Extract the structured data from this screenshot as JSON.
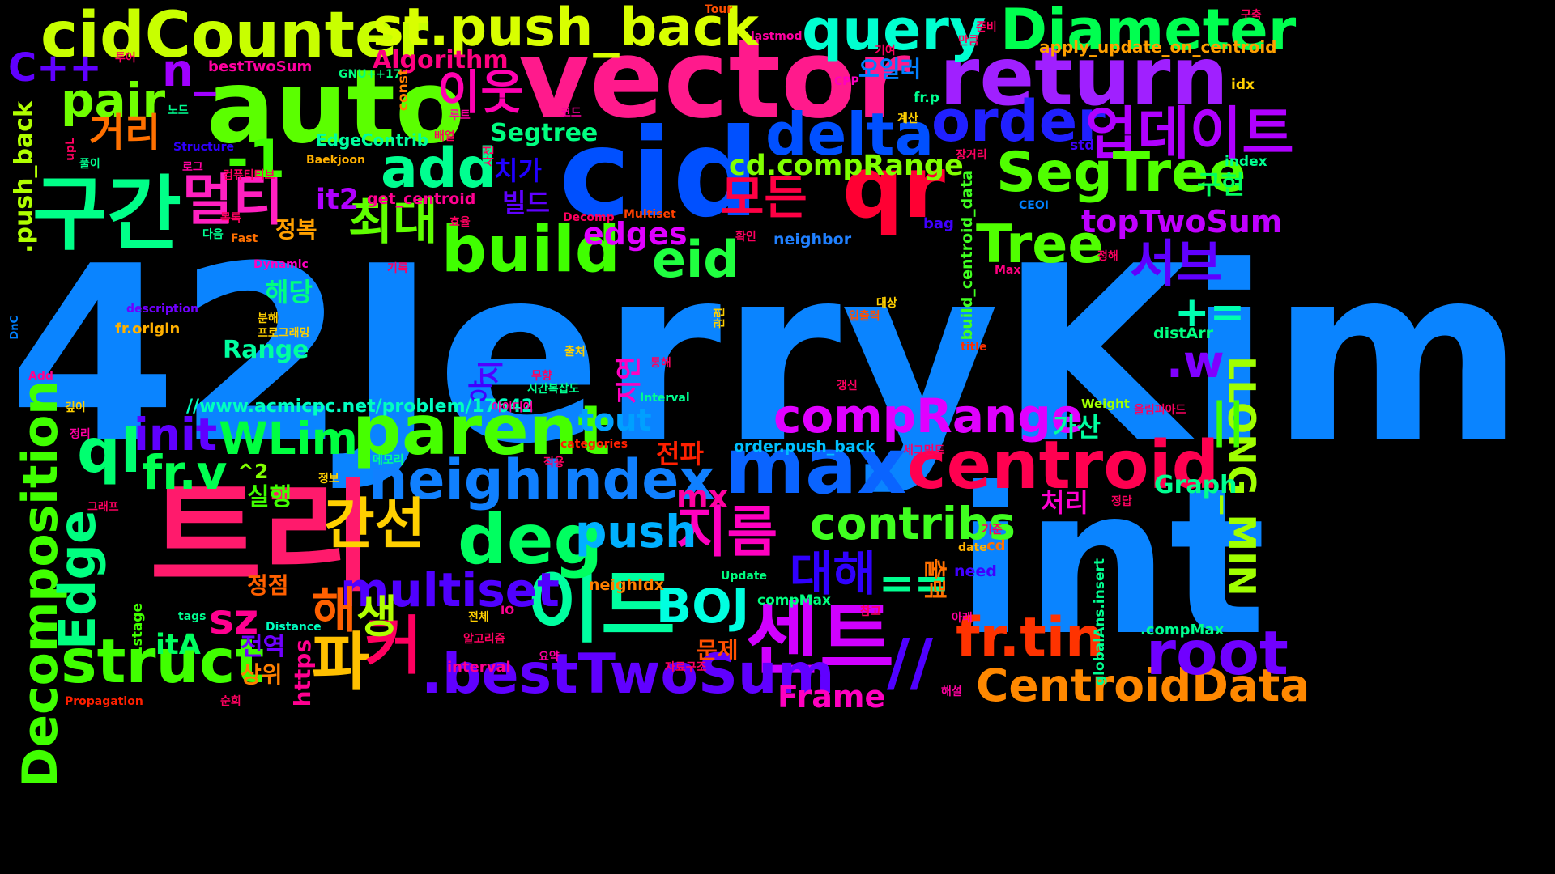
{
  "cloud": {
    "words": [
      {
        "text": "42JerryKim",
        "color": "#0a84ff"
      },
      {
        "text": "int",
        "color": "#0a84ff"
      },
      {
        "text": "vector",
        "color": "#ff1a8c"
      },
      {
        "text": "cid",
        "color": "#0050ff"
      },
      {
        "text": "auto",
        "color": "#5bff00"
      },
      {
        "text": "트리",
        "color": "#ff1a6c"
      },
      {
        "text": "cidCounter",
        "color": "#c8ff00"
      },
      {
        "text": "return",
        "color": "#a020ff"
      },
      {
        "text": "qr",
        "color": "#ff0033"
      },
      {
        "text": "max",
        "color": "#0a64ff"
      },
      {
        "text": "parent",
        "color": "#46ff00"
      },
      {
        "text": "centroid",
        "color": "#ff0050"
      },
      {
        "text": "구간",
        "color": "#00ff88"
      },
      {
        "text": "이드",
        "color": "#00ffa0"
      },
      {
        "text": "센트",
        "color": "#d000ff"
      },
      {
        "text": "query",
        "color": "#00ffd0"
      },
      {
        "text": "Diameter",
        "color": "#00ff50"
      },
      {
        "text": "st.push_back",
        "color": "#d8ff00"
      },
      {
        "text": "order",
        "color": "#2020ff"
      },
      {
        "text": "delta",
        "color": "#0050ff"
      },
      {
        "text": "업데이트",
        "color": "#b000ff"
      },
      {
        "text": "SegTree",
        "color": "#50ff00"
      },
      {
        "text": "compRange",
        "color": "#e000ff"
      },
      {
        "text": "neighIndex",
        "color": "#1080ff"
      },
      {
        "text": "build",
        "color": "#40ff00"
      },
      {
        "text": "deg",
        "color": "#00ff60"
      },
      {
        "text": "struct",
        "color": "#40ff00"
      },
      {
        "text": ".bestTwoSum",
        "color": "#6000ff"
      },
      {
        "text": "CentroidData",
        "color": "#ff8800"
      },
      {
        "text": "root",
        "color": "#7000ff"
      },
      {
        "text": "fr.tin",
        "color": "#ff3300"
      },
      {
        "text": "Tree",
        "color": "#50ff00"
      },
      {
        "text": "멀티",
        "color": "#ff20c0"
      },
      {
        "text": "모든",
        "color": "#ff0044"
      },
      {
        "text": "최대",
        "color": "#60ff00"
      },
      {
        "text": "add",
        "color": "#00ff90"
      },
      {
        "text": "eid",
        "color": "#20ff40"
      },
      {
        "text": "ql",
        "color": "#00ff70"
      },
      {
        "text": "fr.v",
        "color": "#00ff50"
      },
      {
        "text": "init",
        "color": "#6000ff"
      },
      {
        "text": "WLim",
        "color": "#00ff40"
      },
      {
        "text": "지름",
        "color": "#ff00c0"
      },
      {
        "text": "간선",
        "color": "#ffd000"
      },
      {
        "text": "push",
        "color": "#00b0ff"
      },
      {
        "text": "multiset",
        "color": "#5000ff"
      },
      {
        "text": "BOJ",
        "color": "#00ffe0"
      },
      {
        "text": "contribs",
        "color": "#40ff20"
      },
      {
        "text": "대해",
        "color": "#3000ff"
      },
      {
        "text": "파",
        "color": "#ffc000"
      },
      {
        "text": "해",
        "color": "#ff6000"
      },
      {
        "text": "커",
        "color": "#ff0060"
      },
      {
        "text": "생",
        "color": "#b0ff00"
      },
      {
        "text": "Decomposition",
        "color": "#40ff00"
      },
      {
        "text": "Edge",
        "color": "#00ff80"
      },
      {
        "text": "pair",
        "color": "#70ff00"
      },
      {
        "text": "거리",
        "color": "#ff7000"
      },
      {
        "text": "n_",
        "color": "#a000ff"
      },
      {
        "text": "-1",
        "color": "#40ff00"
      },
      {
        "text": "C++",
        "color": "#6000ff"
      },
      {
        "text": "이웃",
        "color": "#ff00b0"
      },
      {
        "text": "서브",
        "color": "#6000ff"
      },
      {
        "text": "+=",
        "color": "#00ffb0"
      },
      {
        "text": ".w",
        "color": "#8000ff"
      },
      {
        "text": "LLONG_MIN",
        "color": "#a0ff00"
      },
      {
        "text": "||",
        "color": "#40ff00"
      },
      {
        "text": "==",
        "color": "#00ff90"
      },
      {
        "text": "//",
        "color": "#5000ff"
      },
      {
        "text": "sz",
        "color": "#ff0090"
      },
      {
        "text": "topTwoSum",
        "color": "#c000ff"
      },
      {
        "text": "edges",
        "color": "#e000ff"
      },
      {
        "text": "cd.compRange",
        "color": "#80ff00"
      },
      {
        "text": "it2",
        "color": "#b000ff"
      },
      {
        "text": "tout",
        "color": "#00a0ff"
      },
      {
        "text": "mx",
        "color": "#ff00a0"
      },
      {
        "text": "Frame",
        "color": "#ff00c0"
      },
      {
        "text": "Range",
        "color": "#00ffa0"
      },
      {
        "text": "Algorithm",
        "color": "#ff0080"
      },
      {
        "text": "Segtree",
        "color": "#00ff80"
      },
      {
        "text": "itA",
        "color": "#00ff60"
      },
      {
        "text": "Graph",
        "color": "#00ff90"
      },
      {
        "text": "가산",
        "color": "#00ffa0"
      },
      {
        "text": "구현",
        "color": "#00ff60"
      },
      {
        "text": "처리",
        "color": "#ff00d0"
      },
      {
        "text": "전파",
        "color": "#ff2000"
      },
      {
        "text": "치가",
        "color": "#2000ff"
      },
      {
        "text": "빌드",
        "color": "#6000ff"
      },
      {
        "text": "해당",
        "color": "#00ff80"
      },
      {
        "text": "정복",
        "color": "#ffa000"
      },
      {
        "text": "실행",
        "color": "#40ff00"
      },
      {
        "text": "정점",
        "color": "#ff6000"
      },
      {
        "text": "전역",
        "color": "#7000ff"
      },
      {
        "text": "상위",
        "color": "#ff8000"
      },
      {
        "text": "문제",
        "color": "#ff5000"
      },
      {
        "text": "출력",
        "color": "#ff7000"
      },
      {
        "text": "지연",
        "color": "#ff00c0"
      },
      {
        "text": "야",
        "color": "#4000ff"
      },
      {
        "text": "지",
        "color": "#5000ff"
      },
      {
        "text": "https",
        "color": "#ff0090"
      },
      {
        "text": "//www.acmicpc.net/problem/17642",
        "color": "#00ffc0"
      },
      {
        "text": "^2",
        "color": "#80ff00"
      },
      {
        "text": ".push_back",
        "color": "#b0ff00"
      },
      {
        "text": "apply_update_on_centroid",
        "color": "#ffa000"
      },
      {
        "text": "bestTwoSum",
        "color": "#ff00a0"
      },
      {
        "text": "GNU++17",
        "color": "#00ff80"
      },
      {
        "text": "const",
        "color": "#ff8000"
      },
      {
        "text": "오일러",
        "color": "#0080ff"
      },
      {
        "text": "EdgeContrib",
        "color": "#00ffa0"
      },
      {
        "text": "get_centroid",
        "color": "#ff0090"
      },
      {
        "text": "build_centroid_data",
        "color": "#40ff20"
      },
      {
        "text": "neighbor",
        "color": "#2080ff"
      },
      {
        "text": "distArr",
        "color": "#00ff80"
      },
      {
        "text": "order.push_back",
        "color": "#00c0ff"
      },
      {
        "text": "neighIdx",
        "color": "#ff8000"
      },
      {
        "text": "compMax",
        "color": "#00ff80"
      },
      {
        "text": ".compMax",
        "color": "#00ff90"
      },
      {
        "text": "globalAns.insert",
        "color": "#00ff90"
      },
      {
        "text": "fr.stage",
        "color": "#40ff00"
      },
      {
        "text": "fr.origin",
        "color": "#ffb000"
      },
      {
        "text": "description",
        "color": "#7000ff"
      },
      {
        "text": "interval",
        "color": "#ff0090"
      },
      {
        "text": "Propagation",
        "color": "#ff2000"
      },
      {
        "text": "Distance",
        "color": "#00ffc0"
      },
      {
        "text": "tags",
        "color": "#00ff90"
      },
      {
        "text": "Interval",
        "color": "#00ff90"
      },
      {
        "text": "Weight",
        "color": "#a0ff00"
      },
      {
        "text": "Update",
        "color": "#00ff80"
      },
      {
        "text": "need",
        "color": "#4000ff"
      },
      {
        "text": "cd",
        "color": "#ff7000"
      },
      {
        "text": "date",
        "color": "#ffb000"
      },
      {
        "text": "categories",
        "color": "#ff2000"
      },
      {
        "text": "title",
        "color": "#ff3000"
      },
      {
        "text": "Max",
        "color": "#ff0080"
      },
      {
        "text": "Multiset",
        "color": "#ff4000"
      },
      {
        "text": "Decomp",
        "color": "#ff0060"
      },
      {
        "text": "Fast",
        "color": "#ff7000"
      },
      {
        "text": "Dynamic",
        "color": "#ff00c0"
      },
      {
        "text": "Baekjoon",
        "color": "#ffb000"
      },
      {
        "text": "Structure",
        "color": "#3000ff"
      },
      {
        "text": "CEOI",
        "color": "#0080ff"
      },
      {
        "text": "bag",
        "color": "#4000ff"
      },
      {
        "text": "std",
        "color": "#4000ff"
      },
      {
        "text": "index",
        "color": "#00ff90"
      },
      {
        "text": "idx",
        "color": "#ffd000"
      },
      {
        "text": "fr.p",
        "color": "#00ff90"
      },
      {
        "text": "CPP",
        "color": "#ff00c0"
      },
      {
        "text": "lastmod",
        "color": "#ff00a0"
      },
      {
        "text": "Tour",
        "color": "#ff5000"
      },
      {
        "text": "IO",
        "color": "#ff0090"
      },
      {
        "text": "Add",
        "color": "#ff0090"
      },
      {
        "text": "DnC",
        "color": "#0080ff"
      },
      {
        "text": "upL",
        "color": "#ff0060"
      },
      {
        "text": "구축",
        "color": "#ff0060"
      },
      {
        "text": "준비",
        "color": "#ff0060"
      },
      {
        "text": "만큼",
        "color": "#ff0060"
      },
      {
        "text": "기여",
        "color": "#ff0060"
      },
      {
        "text": "투어",
        "color": "#ff0060"
      },
      {
        "text": "노드",
        "color": "#00ff90"
      },
      {
        "text": "코드",
        "color": "#ff00a0"
      },
      {
        "text": "루트",
        "color": "#ff00a0"
      },
      {
        "text": "계산",
        "color": "#ffd000"
      },
      {
        "text": "배열",
        "color": "#ff0060"
      },
      {
        "text": "사전",
        "color": "#ff0060"
      },
      {
        "text": "장거리",
        "color": "#ff0060"
      },
      {
        "text": "풀이",
        "color": "#00ff90"
      },
      {
        "text": "로그",
        "color": "#ff00a0"
      },
      {
        "text": "컴퓨티티브",
        "color": "#ff0060"
      },
      {
        "text": "목록",
        "color": "#ff0060"
      },
      {
        "text": "다음",
        "color": "#00ff90"
      },
      {
        "text": "효율",
        "color": "#ff0060"
      },
      {
        "text": "확인",
        "color": "#ff0060"
      },
      {
        "text": "정해",
        "color": "#ff0060"
      },
      {
        "text": "관련",
        "color": "#ffd000"
      },
      {
        "text": "기록",
        "color": "#ff0060"
      },
      {
        "text": "대상",
        "color": "#ffd000"
      },
      {
        "text": "분해",
        "color": "#ffd000"
      },
      {
        "text": "프로그래밍",
        "color": "#ffd000"
      },
      {
        "text": "입출력",
        "color": "#ff5000"
      },
      {
        "text": "출처",
        "color": "#ffd000"
      },
      {
        "text": "통해",
        "color": "#ff0060"
      },
      {
        "text": "무향",
        "color": "#ff0060"
      },
      {
        "text": "시간복잡도",
        "color": "#00ff90"
      },
      {
        "text": "아이디어",
        "color": "#ff00a0"
      },
      {
        "text": "갱신",
        "color": "#ff0060"
      },
      {
        "text": "깊이",
        "color": "#ffd000"
      },
      {
        "text": "정리",
        "color": "#ff00a0"
      },
      {
        "text": "메모리",
        "color": "#00ff90"
      },
      {
        "text": "적용",
        "color": "#ff0060"
      },
      {
        "text": "세그먼트",
        "color": "#ff0060"
      },
      {
        "text": "올림피아드",
        "color": "#ff0060"
      },
      {
        "text": "정보",
        "color": "#ffd000"
      },
      {
        "text": "그래프",
        "color": "#ff0060"
      },
      {
        "text": "정답",
        "color": "#ff0060"
      },
      {
        "text": "기준",
        "color": "#ff0060"
      },
      {
        "text": "참고",
        "color": "#ff0060"
      },
      {
        "text": "전체",
        "color": "#ffd000"
      },
      {
        "text": "아래",
        "color": "#ff00a0"
      },
      {
        "text": "알고리즘",
        "color": "#ff0060"
      },
      {
        "text": "요약",
        "color": "#ff00a0"
      },
      {
        "text": "자료구조",
        "color": "#ff0060"
      },
      {
        "text": "해설",
        "color": "#ff00a0"
      },
      {
        "text": "순회",
        "color": "#ff0060"
      }
    ]
  }
}
